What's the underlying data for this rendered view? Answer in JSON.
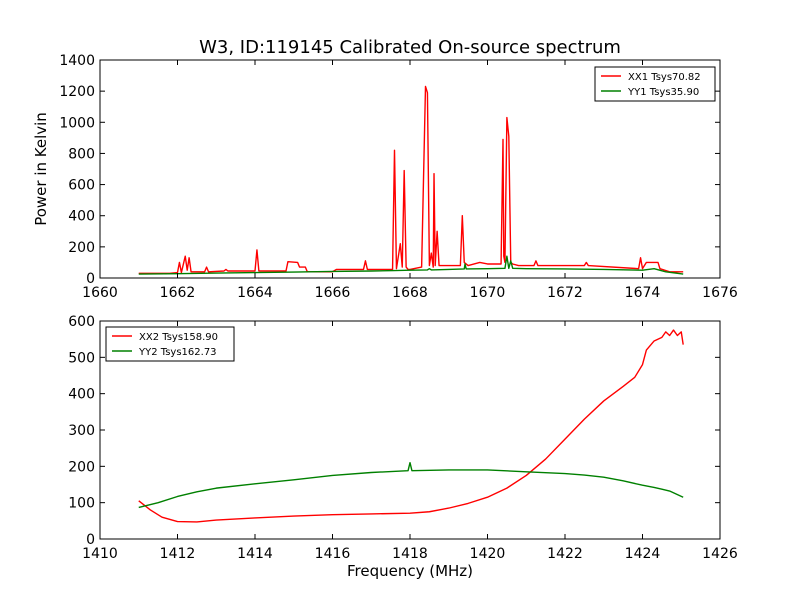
{
  "chart_data": [
    {
      "type": "line",
      "title": "W3, ID:119145 Calibrated On-source spectrum",
      "xlabel": "",
      "ylabel": "Power in Kelvin",
      "xlim": [
        1660,
        1676
      ],
      "ylim": [
        0,
        1400
      ],
      "xticks": [
        1660,
        1662,
        1664,
        1666,
        1668,
        1670,
        1672,
        1674,
        1676
      ],
      "yticks": [
        0,
        200,
        400,
        600,
        800,
        1000,
        1200,
        1400
      ],
      "legend_position": "top-right",
      "series": [
        {
          "name": "XX1 Tsys70.82",
          "color": "#ff0000",
          "x": [
            1661.0,
            1661.8,
            1662.0,
            1662.05,
            1662.1,
            1662.2,
            1662.25,
            1662.3,
            1662.35,
            1662.4,
            1662.7,
            1662.75,
            1662.8,
            1663.2,
            1663.25,
            1663.3,
            1664.0,
            1664.05,
            1664.1,
            1664.8,
            1664.85,
            1665.1,
            1665.15,
            1665.3,
            1665.35,
            1666.0,
            1666.1,
            1666.8,
            1666.85,
            1666.9,
            1667.55,
            1667.6,
            1667.65,
            1667.75,
            1667.8,
            1667.85,
            1667.9,
            1667.95,
            1668.0,
            1668.3,
            1668.4,
            1668.45,
            1668.5,
            1668.55,
            1668.6,
            1668.62,
            1668.65,
            1668.7,
            1668.75,
            1669.3,
            1669.35,
            1669.4,
            1669.5,
            1669.8,
            1670.0,
            1670.35,
            1670.4,
            1670.42,
            1670.45,
            1670.5,
            1670.55,
            1670.6,
            1670.65,
            1670.8,
            1671.2,
            1671.25,
            1671.3,
            1672.5,
            1672.55,
            1672.6,
            1673.9,
            1673.95,
            1674.0,
            1674.1,
            1674.4,
            1674.45,
            1674.7,
            1675.05
          ],
          "y": [
            30,
            30,
            35,
            100,
            35,
            140,
            50,
            130,
            40,
            40,
            40,
            70,
            40,
            45,
            55,
            45,
            45,
            180,
            45,
            45,
            105,
            100,
            70,
            70,
            40,
            40,
            55,
            55,
            110,
            55,
            55,
            820,
            60,
            220,
            70,
            690,
            70,
            55,
            55,
            70,
            1230,
            1190,
            80,
            160,
            70,
            670,
            80,
            300,
            80,
            80,
            400,
            100,
            80,
            100,
            90,
            90,
            890,
            140,
            100,
            1030,
            910,
            100,
            90,
            80,
            80,
            110,
            80,
            80,
            100,
            80,
            60,
            130,
            60,
            100,
            100,
            60,
            40,
            40
          ]
        },
        {
          "name": "YY1 Tsys35.90",
          "color": "#008000",
          "x": [
            1661.0,
            1662.0,
            1663.0,
            1664.0,
            1665.0,
            1666.0,
            1667.0,
            1667.6,
            1668.0,
            1668.45,
            1668.5,
            1668.55,
            1669.0,
            1669.4,
            1669.42,
            1669.45,
            1670.0,
            1670.45,
            1670.5,
            1670.55,
            1670.6,
            1670.65,
            1671.0,
            1672.0,
            1673.0,
            1674.0,
            1674.3,
            1674.6,
            1675.05
          ],
          "y": [
            25,
            28,
            32,
            35,
            38,
            42,
            45,
            48,
            50,
            52,
            60,
            52,
            55,
            58,
            90,
            58,
            60,
            62,
            140,
            62,
            110,
            62,
            60,
            58,
            55,
            50,
            60,
            40,
            25
          ]
        }
      ]
    },
    {
      "type": "line",
      "title": "",
      "xlabel": "Frequency (MHz)",
      "ylabel": "",
      "xlim": [
        1410,
        1426
      ],
      "ylim": [
        0,
        600
      ],
      "xticks": [
        1410,
        1412,
        1414,
        1416,
        1418,
        1420,
        1422,
        1424,
        1426
      ],
      "yticks": [
        0,
        100,
        200,
        300,
        400,
        500,
        600
      ],
      "legend_position": "top-left",
      "series": [
        {
          "name": "XX2 Tsys158.90",
          "color": "#ff0000",
          "x": [
            1411.0,
            1411.3,
            1411.6,
            1412.0,
            1412.5,
            1413.0,
            1414.0,
            1415.0,
            1416.0,
            1417.0,
            1418.0,
            1418.5,
            1419.0,
            1419.5,
            1420.0,
            1420.5,
            1421.0,
            1421.5,
            1422.0,
            1422.5,
            1423.0,
            1423.5,
            1423.8,
            1424.0,
            1424.1,
            1424.3,
            1424.5,
            1424.6,
            1424.7,
            1424.8,
            1424.9,
            1425.0,
            1425.05
          ],
          "y": [
            105,
            80,
            60,
            48,
            47,
            52,
            58,
            63,
            67,
            69,
            71,
            75,
            85,
            98,
            115,
            140,
            175,
            220,
            275,
            330,
            380,
            420,
            445,
            480,
            520,
            545,
            555,
            570,
            560,
            575,
            560,
            570,
            535
          ]
        },
        {
          "name": "YY2 Tsys162.73",
          "color": "#008000",
          "x": [
            1411.0,
            1411.5,
            1412.0,
            1412.5,
            1413.0,
            1414.0,
            1415.0,
            1416.0,
            1417.0,
            1417.95,
            1418.0,
            1418.05,
            1419.0,
            1420.0,
            1421.0,
            1422.0,
            1422.5,
            1423.0,
            1423.5,
            1424.0,
            1424.3,
            1424.5,
            1424.7,
            1425.05
          ],
          "y": [
            87,
            100,
            117,
            130,
            140,
            152,
            163,
            175,
            183,
            188,
            210,
            188,
            190,
            190,
            185,
            180,
            176,
            170,
            160,
            148,
            142,
            137,
            132,
            115
          ]
        }
      ]
    }
  ]
}
